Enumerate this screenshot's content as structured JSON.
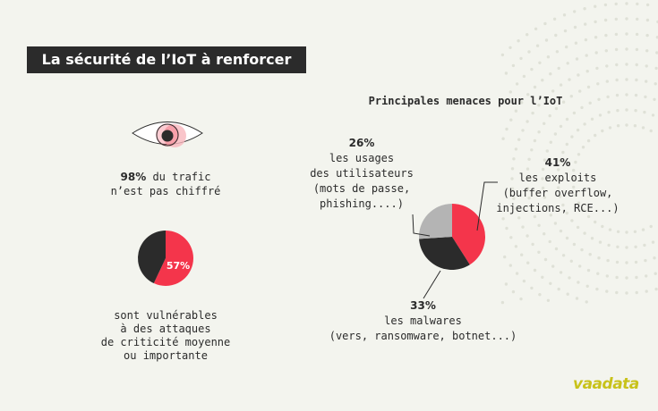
{
  "header": {
    "title": "La sécurité de l’IoT à renforcer"
  },
  "traffic": {
    "percent": "98%",
    "text_line1": " du trafic",
    "text_line2": "n’est pas chiffré"
  },
  "vulnerable": {
    "percent_value": 57,
    "percent_label": "57%",
    "lines": [
      "sont vulnérables",
      "à des attaques",
      "de criticité moyenne",
      "ou importante"
    ]
  },
  "chart_data": {
    "type": "pie",
    "title": "Principales menaces pour l’IoT",
    "slices": [
      {
        "value": 41,
        "label": "41%",
        "color": "#f4354b",
        "desc": [
          "les exploits",
          "(buffer overflow,",
          "injections, RCE...)"
        ]
      },
      {
        "value": 33,
        "label": "33%",
        "color": "#2b2b2b",
        "desc": [
          "les malwares",
          "(vers, ransomware, botnet...)"
        ]
      },
      {
        "value": 26,
        "label": "26%",
        "color": "#b4b4b4",
        "desc": [
          "les usages",
          "des utilisateurs",
          "(mots de passe,",
          "phishing....)"
        ]
      }
    ]
  },
  "logo": {
    "text": "vaadata",
    "color": "#c8c21a"
  },
  "colors": {
    "accent": "#f4354b",
    "dark": "#2b2b2b",
    "grey": "#b4b4b4",
    "background": "#f3f4ee"
  }
}
